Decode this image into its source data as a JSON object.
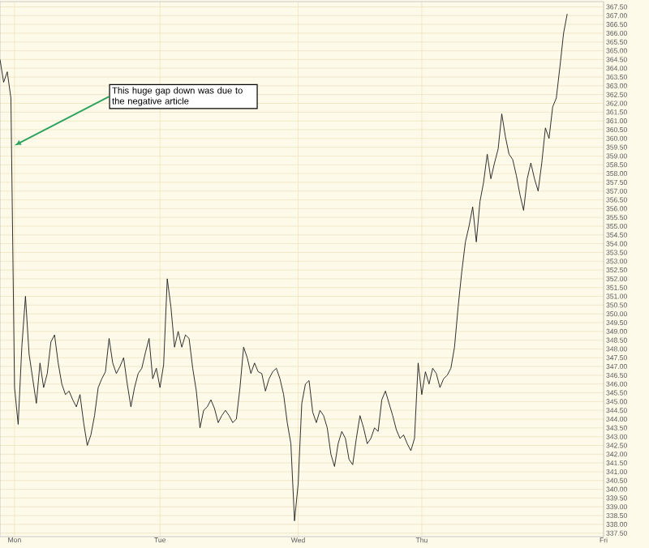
{
  "chart_data": {
    "type": "line",
    "color": "#1a1a1a",
    "grid": true,
    "categories": [
      null,
      null,
      null,
      null,
      "Mon",
      null,
      null,
      null,
      null,
      null,
      null,
      null,
      null,
      null,
      null,
      null,
      null,
      null,
      null,
      null,
      null,
      null,
      null,
      null,
      null,
      null,
      null,
      null,
      null,
      null,
      null,
      null,
      null,
      null,
      null,
      null,
      null,
      null,
      null,
      null,
      null,
      null,
      null,
      null,
      "Tue",
      null,
      null,
      null,
      null,
      null,
      null,
      null,
      null,
      null,
      null,
      null,
      null,
      null,
      null,
      null,
      null,
      null,
      null,
      null,
      null,
      null,
      null,
      null,
      null,
      null,
      null,
      null,
      null,
      null,
      null,
      null,
      null,
      null,
      null,
      null,
      null,
      null,
      "Wed",
      null,
      null,
      null,
      null,
      null,
      null,
      null,
      null,
      null,
      null,
      null,
      null,
      null,
      null,
      null,
      null,
      null,
      null,
      null,
      null,
      null,
      null,
      null,
      null,
      null,
      null,
      null,
      null,
      null,
      null,
      null,
      null,
      null,
      "Thu",
      null,
      null,
      null,
      null,
      null,
      null,
      null,
      null,
      null,
      null,
      null,
      null,
      null,
      null,
      null,
      null,
      null,
      null,
      null,
      null,
      null,
      null,
      null,
      null,
      null,
      null,
      null,
      null,
      null,
      null,
      null,
      null,
      null,
      null,
      null,
      null,
      null,
      null,
      null,
      null,
      null,
      null,
      null,
      null,
      null,
      null,
      null,
      null,
      null,
      "Fri"
    ],
    "values": [
      364.5,
      363.2,
      363.8,
      362.3,
      345.8,
      343.7,
      348.1,
      351.0,
      347.7,
      346.3,
      344.9,
      347.2,
      345.8,
      346.6,
      348.4,
      348.8,
      347.2,
      346.0,
      345.4,
      345.6,
      345.1,
      344.7,
      345.4,
      343.8,
      342.5,
      343.1,
      344.2,
      345.8,
      346.3,
      346.7,
      348.6,
      347.2,
      346.6,
      347.0,
      347.5,
      346.0,
      344.7,
      345.8,
      346.6,
      346.9,
      347.8,
      348.6,
      346.3,
      346.9,
      345.8,
      347.1,
      352.0,
      350.4,
      348.1,
      349.0,
      348.1,
      348.8,
      348.6,
      346.9,
      345.6,
      343.5,
      344.5,
      344.7,
      345.1,
      344.6,
      343.8,
      344.2,
      344.5,
      344.2,
      343.8,
      344.0,
      345.8,
      348.1,
      347.5,
      346.6,
      347.2,
      346.7,
      346.6,
      345.6,
      346.3,
      346.7,
      346.9,
      346.3,
      345.4,
      343.8,
      342.6,
      338.2,
      340.3,
      344.9,
      346.0,
      346.2,
      344.4,
      343.8,
      344.5,
      344.2,
      343.5,
      342.0,
      341.3,
      342.6,
      343.3,
      342.9,
      341.7,
      341.4,
      342.9,
      344.2,
      343.5,
      342.6,
      342.9,
      343.5,
      343.3,
      345.1,
      345.6,
      344.9,
      344.2,
      343.4,
      342.9,
      343.1,
      342.6,
      342.2,
      342.9,
      347.2,
      345.4,
      346.7,
      346.0,
      346.9,
      346.6,
      345.8,
      346.3,
      346.5,
      346.9,
      348.1,
      350.4,
      352.4,
      354.1,
      355.0,
      356.1,
      354.1,
      356.4,
      357.5,
      359.1,
      357.7,
      358.6,
      359.4,
      361.4,
      360.1,
      359.1,
      358.8,
      357.9,
      356.8,
      355.9,
      357.7,
      358.6,
      357.7,
      357.0,
      358.6,
      360.6,
      360.0,
      361.8,
      362.3,
      364.1,
      366.0,
      367.1,
      null,
      null,
      null,
      null,
      null,
      null,
      null,
      null,
      null,
      null
    ],
    "ylim": [
      337.3,
      367.8
    ],
    "yticks": [
      {
        "value": 337.5,
        "label": "337.50"
      },
      {
        "value": 338,
        "label": "338.00"
      },
      {
        "value": 338.5,
        "label": "338.50"
      },
      {
        "value": 339,
        "label": "339.00"
      },
      {
        "value": 339.5,
        "label": "339.50"
      },
      {
        "value": 340,
        "label": "340.00"
      },
      {
        "value": 340.5,
        "label": "340.50"
      },
      {
        "value": 341,
        "label": "341.00"
      },
      {
        "value": 341.5,
        "label": "341.50"
      },
      {
        "value": 342,
        "label": "342.00"
      },
      {
        "value": 342.5,
        "label": "342.50"
      },
      {
        "value": 343,
        "label": "343.00"
      },
      {
        "value": 343.5,
        "label": "343.50"
      },
      {
        "value": 344,
        "label": "344.00"
      },
      {
        "value": 344.5,
        "label": "344.50"
      },
      {
        "value": 345,
        "label": "345.00"
      },
      {
        "value": 345.5,
        "label": "345.50"
      },
      {
        "value": 346,
        "label": "346.00"
      },
      {
        "value": 346.5,
        "label": "346.50"
      },
      {
        "value": 347,
        "label": "347.00"
      },
      {
        "value": 347.5,
        "label": "347.50"
      },
      {
        "value": 348,
        "label": "348.00"
      },
      {
        "value": 348.5,
        "label": "348.50"
      },
      {
        "value": 349,
        "label": "349.00"
      },
      {
        "value": 349.5,
        "label": "349.50"
      },
      {
        "value": 350,
        "label": "350.00"
      },
      {
        "value": 350.5,
        "label": "350.50"
      },
      {
        "value": 351,
        "label": "351.00"
      },
      {
        "value": 351.5,
        "label": "351.50"
      },
      {
        "value": 352,
        "label": "352.00"
      },
      {
        "value": 352.5,
        "label": "352.50"
      },
      {
        "value": 353,
        "label": "353.00"
      },
      {
        "value": 353.5,
        "label": "353.50"
      },
      {
        "value": 354,
        "label": "354.00"
      },
      {
        "value": 354.5,
        "label": "354.50"
      },
      {
        "value": 355,
        "label": "355.00"
      },
      {
        "value": 355.5,
        "label": "355.50"
      },
      {
        "value": 356,
        "label": "356.00"
      },
      {
        "value": 356.5,
        "label": "356.50"
      },
      {
        "value": 357,
        "label": "357.00"
      },
      {
        "value": 357.5,
        "label": "357.50"
      },
      {
        "value": 358,
        "label": "358.00"
      },
      {
        "value": 358.5,
        "label": "358.50"
      },
      {
        "value": 359,
        "label": "359.00"
      },
      {
        "value": 359.5,
        "label": "359.50"
      },
      {
        "value": 360,
        "label": "360.00"
      },
      {
        "value": 360.5,
        "label": "360.50"
      },
      {
        "value": 361,
        "label": "361.00"
      },
      {
        "value": 361.5,
        "label": "361.50"
      },
      {
        "value": 362,
        "label": "362.00"
      },
      {
        "value": 362.5,
        "label": "362.50"
      },
      {
        "value": 363,
        "label": "363.00"
      },
      {
        "value": 363.5,
        "label": "363.50"
      },
      {
        "value": 364,
        "label": "364.00"
      },
      {
        "value": 364.5,
        "label": "364.50"
      },
      {
        "value": 365,
        "label": "365.00"
      },
      {
        "value": 365.5,
        "label": "365.50"
      },
      {
        "value": 366,
        "label": "366.00"
      },
      {
        "value": 366.5,
        "label": "366.50"
      },
      {
        "value": 367,
        "label": "367.00"
      },
      {
        "value": 367.5,
        "label": "367.50"
      }
    ],
    "annotations": [
      {
        "text": "This huge gap down was due to the negative article",
        "x": "Mon",
        "y": 359.6
      }
    ]
  }
}
